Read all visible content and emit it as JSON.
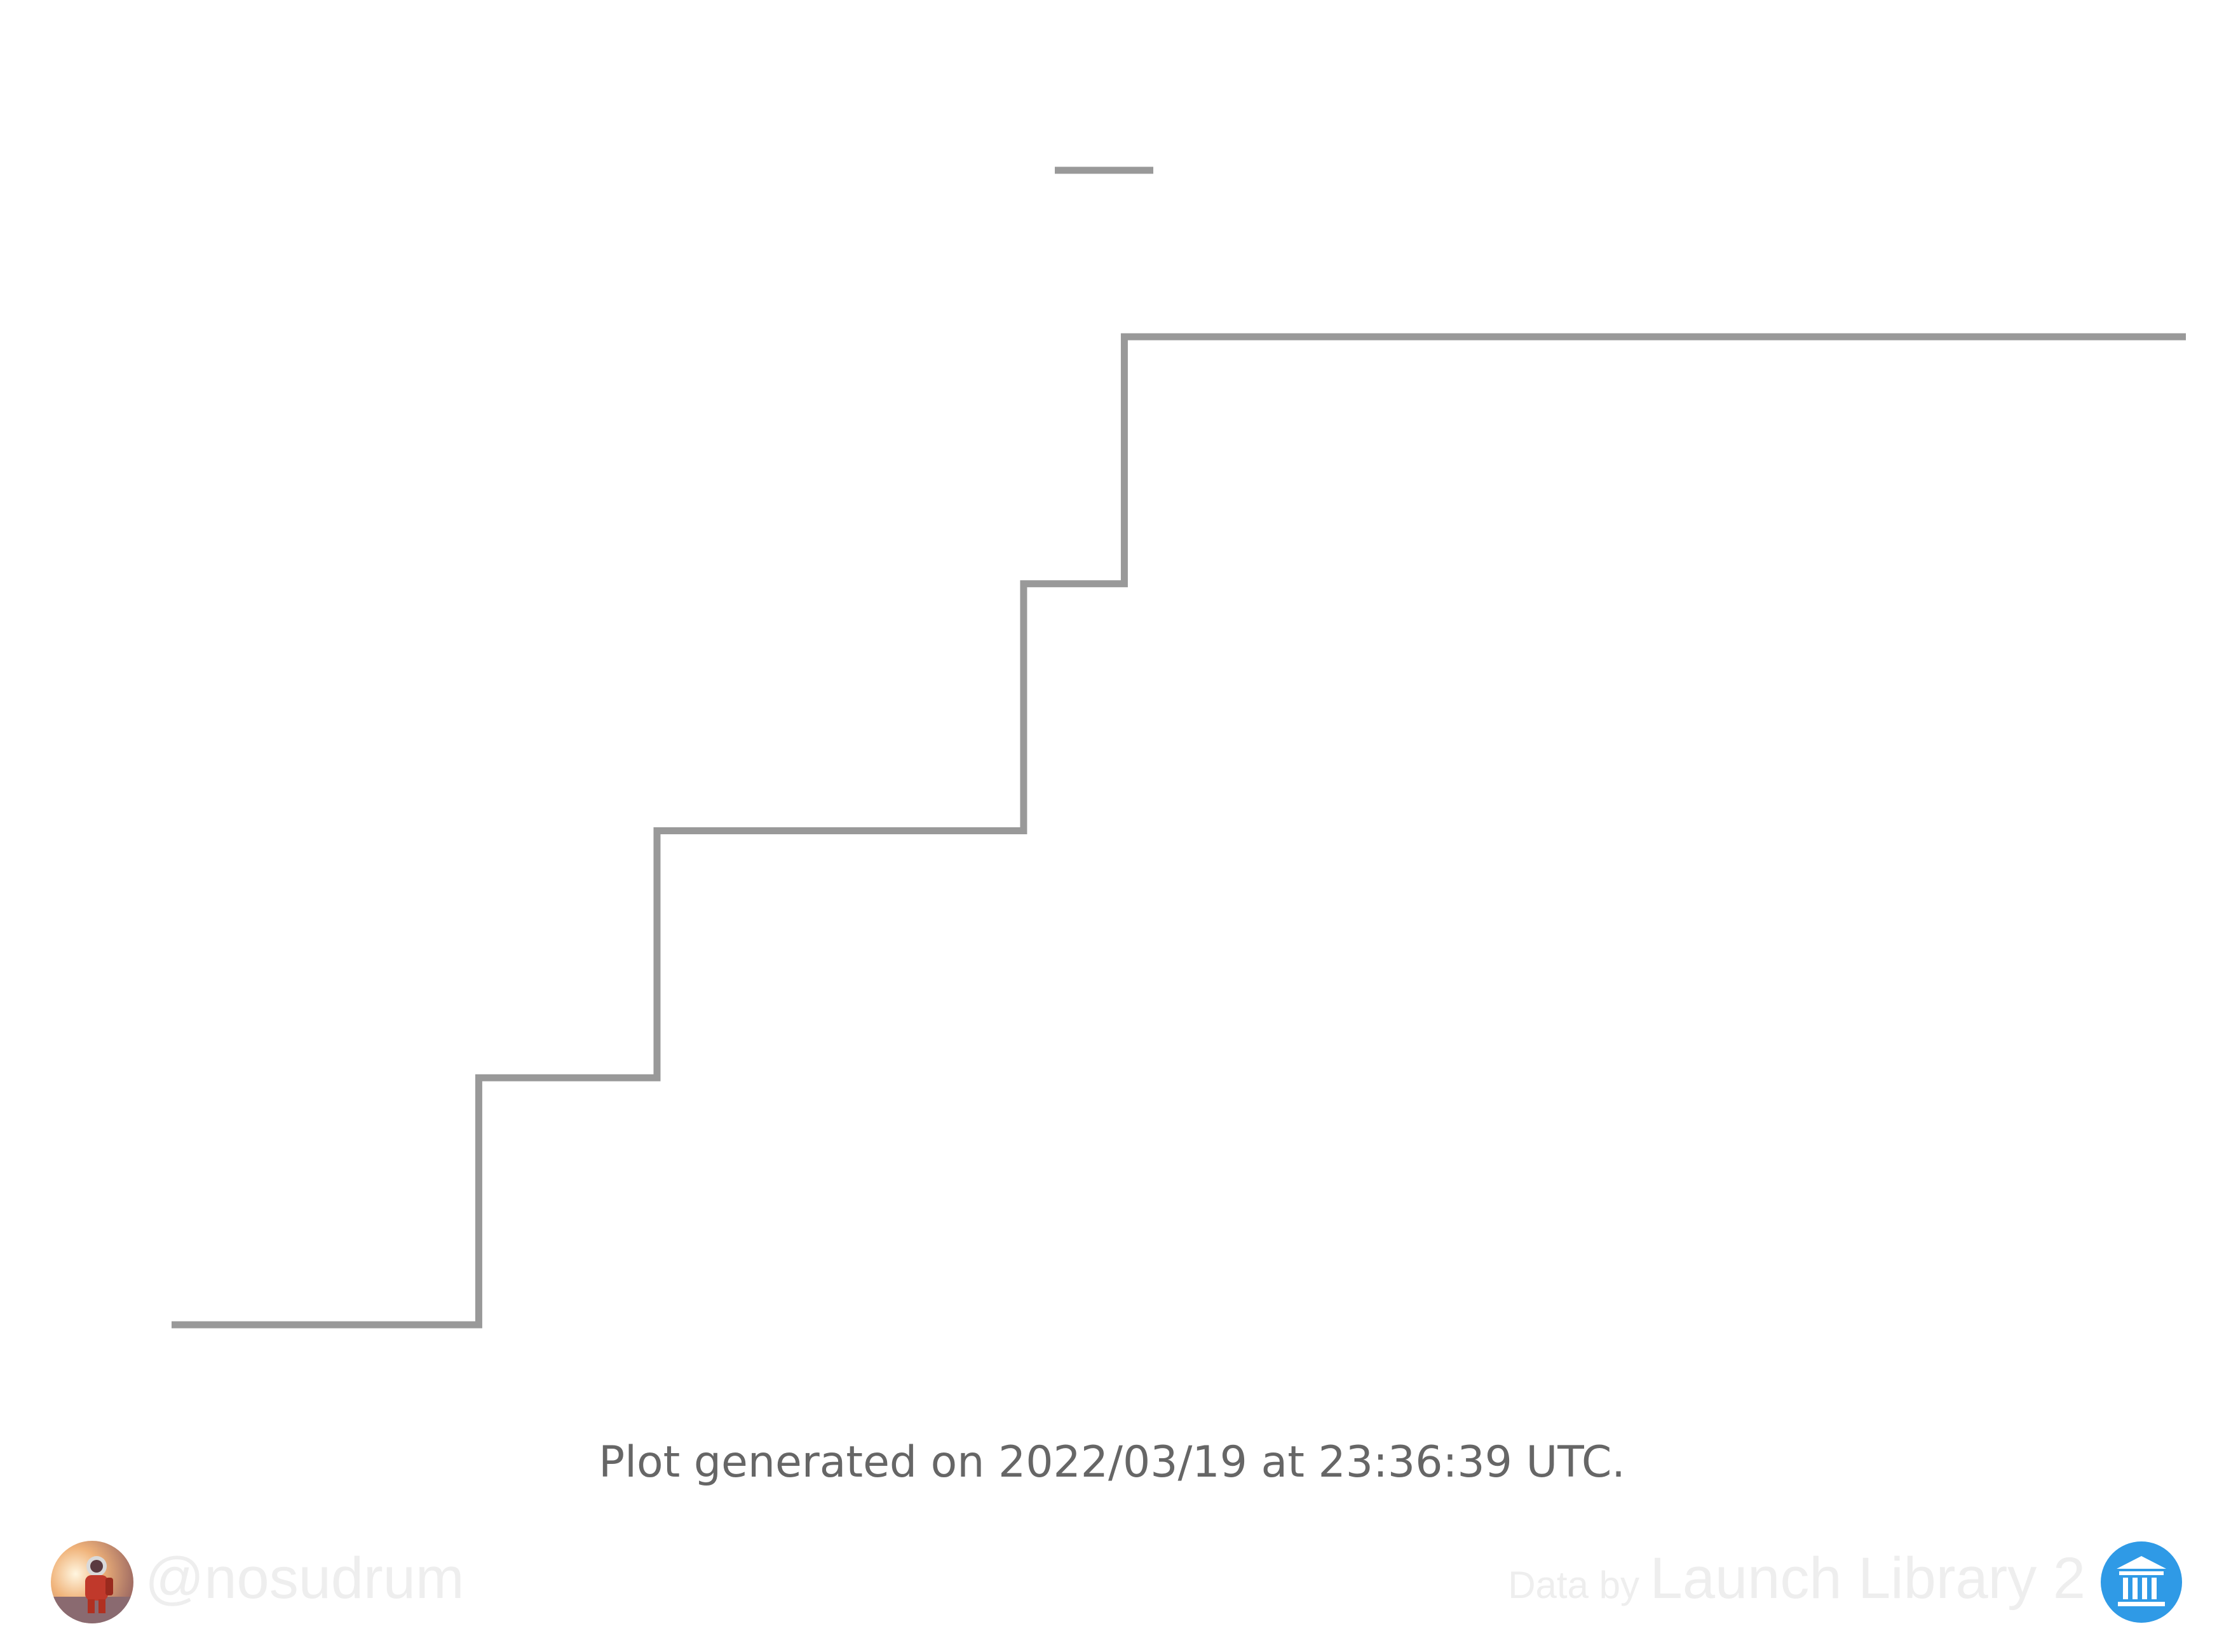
{
  "chart_data": {
    "type": "line",
    "step": "post",
    "title": "",
    "xlabel": "",
    "ylabel": "",
    "legend": {
      "placement": "top-center",
      "entries": [
        {
          "name": "",
          "color": "#999999"
        }
      ]
    },
    "grid": false,
    "x_domain": [
      0,
      20
    ],
    "ylim": [
      0,
      4
    ],
    "series": [
      {
        "name": "",
        "color": "#999999",
        "x": [
          0,
          3.05,
          4.82,
          8.46,
          9.46,
          20
        ],
        "values": [
          0,
          1,
          2,
          3,
          4,
          4
        ]
      }
    ]
  },
  "footer": {
    "generated": "Plot generated on 2022/03/19 at 23:36:39 UTC."
  },
  "branding": {
    "handle": "@nosudrum",
    "credit_prefix": "Data by ",
    "credit_name": "Launch Library 2",
    "avatar_icon": "astronaut-avatar-icon",
    "logo_icon": "library-building-icon",
    "logo_color": "#2f9ae6"
  }
}
